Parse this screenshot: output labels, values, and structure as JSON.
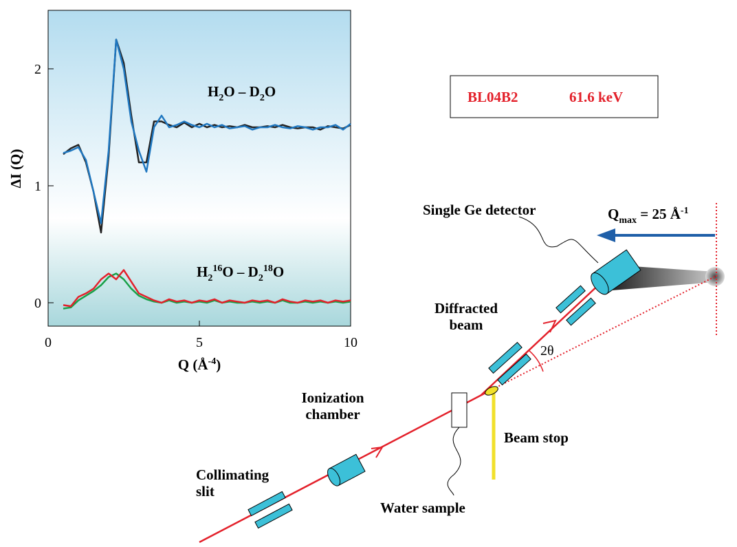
{
  "chart_data": {
    "type": "line",
    "x_label": [
      "Q (Å",
      "-4",
      ")"
    ],
    "y_label": "ΔI (Q)",
    "annotations": [
      [
        "H",
        "2",
        "O – D",
        "2",
        "O"
      ],
      [
        "H",
        "2",
        "16",
        "O – D",
        "2",
        "18",
        "O"
      ]
    ],
    "xlim": [
      0,
      10
    ],
    "xticks": [
      0,
      5,
      10
    ],
    "ylim": [
      -0.2,
      2.5
    ],
    "yticks": [
      0,
      1,
      2
    ],
    "x": [
      0.5,
      0.75,
      1,
      1.25,
      1.5,
      1.75,
      2,
      2.25,
      2.5,
      2.75,
      3,
      3.25,
      3.5,
      3.75,
      4,
      4.25,
      4.5,
      4.75,
      5,
      5.25,
      5.5,
      5.75,
      6,
      6.25,
      6.5,
      6.75,
      7,
      7.25,
      7.5,
      7.75,
      8,
      8.25,
      8.5,
      8.75,
      9,
      9.25,
      9.5,
      9.75,
      10
    ],
    "series": [
      {
        "color": "#222222",
        "values": [
          1.27,
          1.32,
          1.35,
          1.2,
          0.95,
          0.6,
          1.25,
          2.25,
          2.05,
          1.6,
          1.2,
          1.2,
          1.55,
          1.55,
          1.52,
          1.5,
          1.54,
          1.5,
          1.53,
          1.5,
          1.52,
          1.5,
          1.51,
          1.5,
          1.52,
          1.5,
          1.5,
          1.51,
          1.5,
          1.52,
          1.5,
          1.49,
          1.5,
          1.5,
          1.48,
          1.51,
          1.5,
          1.49,
          1.52
        ]
      },
      {
        "color": "#1f77c0",
        "values": [
          1.28,
          1.3,
          1.33,
          1.22,
          0.95,
          0.68,
          1.3,
          2.25,
          2.0,
          1.55,
          1.3,
          1.12,
          1.5,
          1.6,
          1.5,
          1.52,
          1.55,
          1.52,
          1.5,
          1.53,
          1.5,
          1.52,
          1.49,
          1.5,
          1.51,
          1.48,
          1.5,
          1.5,
          1.52,
          1.5,
          1.49,
          1.51,
          1.5,
          1.48,
          1.5,
          1.5,
          1.52,
          1.48,
          1.53
        ]
      },
      {
        "color": "#18a048",
        "values": [
          -0.05,
          -0.04,
          0.02,
          0.06,
          0.1,
          0.15,
          0.22,
          0.25,
          0.2,
          0.12,
          0.06,
          0.03,
          0.01,
          0.0,
          0.02,
          0.0,
          0.01,
          0.0,
          0.01,
          0.0,
          0.02,
          0.0,
          0.01,
          0.0,
          0.0,
          0.01,
          0.0,
          0.01,
          0.0,
          0.02,
          0.0,
          0.0,
          0.01,
          0.0,
          0.01,
          0.0,
          0.01,
          0.0,
          0.01
        ]
      },
      {
        "color": "#e3202a",
        "values": [
          -0.02,
          -0.03,
          0.05,
          0.08,
          0.12,
          0.2,
          0.25,
          0.2,
          0.28,
          0.18,
          0.08,
          0.05,
          0.02,
          0.0,
          0.03,
          0.01,
          0.02,
          0.0,
          0.02,
          0.01,
          0.03,
          0.0,
          0.02,
          0.01,
          0.0,
          0.02,
          0.01,
          0.02,
          0.0,
          0.03,
          0.01,
          0.0,
          0.02,
          0.01,
          0.02,
          0.0,
          0.02,
          0.01,
          0.02
        ]
      }
    ]
  },
  "diagram": {
    "beamline": "BL04B2",
    "energy": "61.6 keV",
    "detector": "Single Ge detector",
    "qmax": [
      "Q",
      "max",
      " = 25 Å",
      "-1"
    ],
    "diffracted": [
      "Diffracted",
      "beam"
    ],
    "angle": "2θ",
    "ionization": [
      "Ionization",
      "chamber"
    ],
    "beam_stop": "Beam stop",
    "collimating": [
      "Collimating",
      "slit"
    ],
    "sample": "Water sample"
  }
}
